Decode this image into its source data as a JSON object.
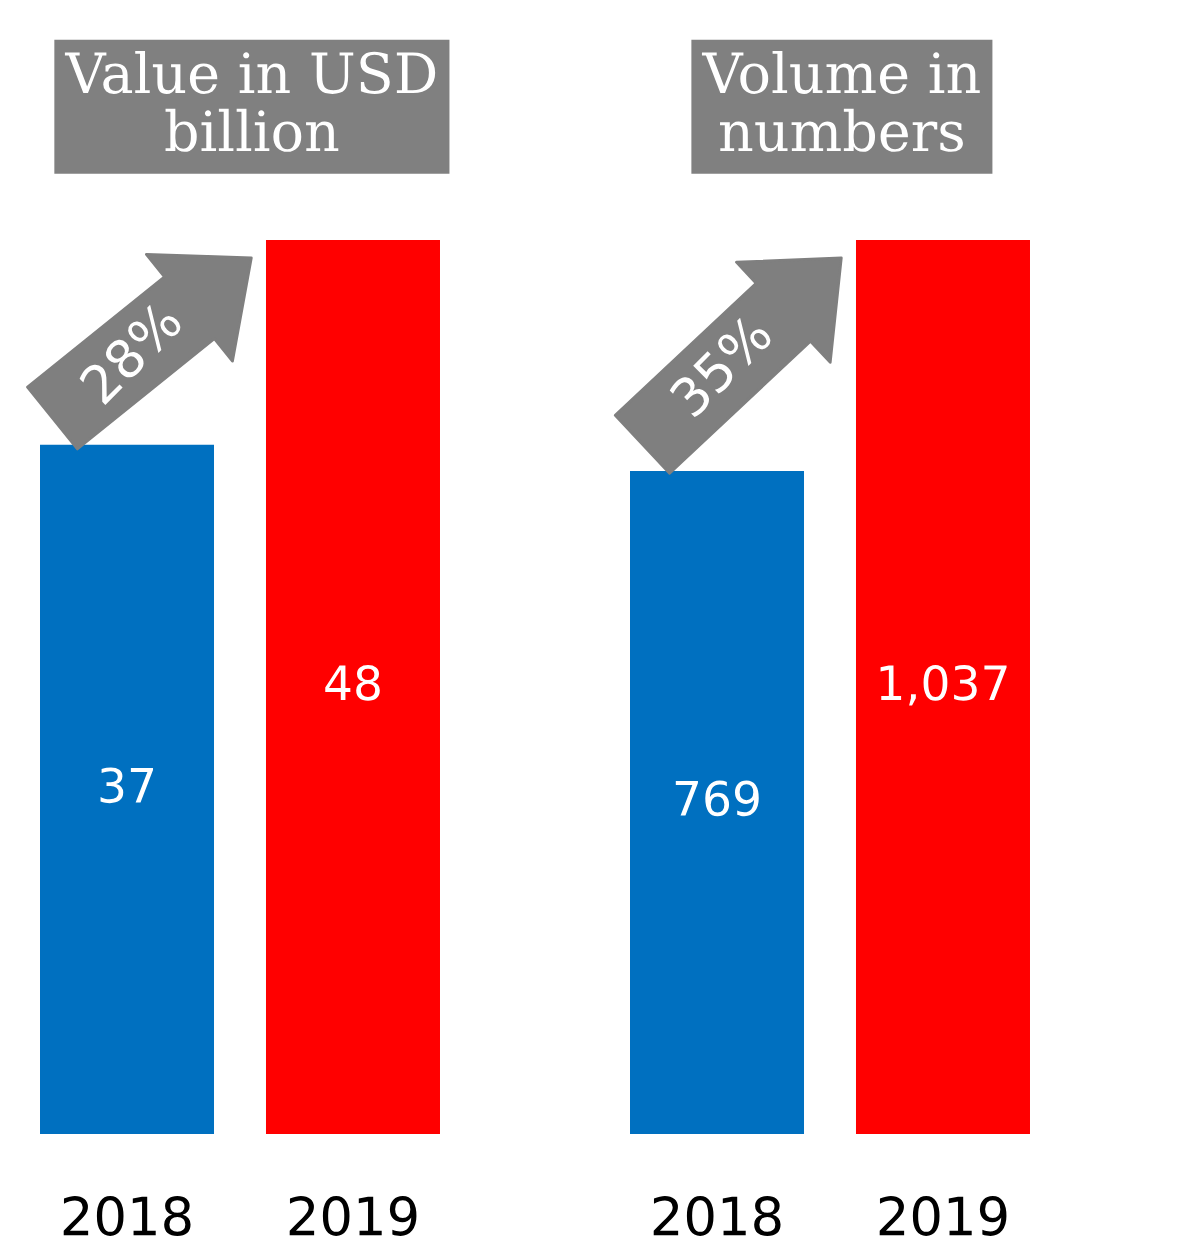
{
  "chart_data": [
    {
      "type": "bar",
      "title": "Value in USD\nbillion",
      "categories": [
        "2018",
        "2019"
      ],
      "values": [
        37,
        48
      ],
      "colors": [
        "#0070c0",
        "#ff0000"
      ],
      "value_labels": [
        "37",
        "48"
      ],
      "annotations": [
        "28%"
      ]
    },
    {
      "type": "bar",
      "title": "Volume in\nnumbers",
      "categories": [
        "2018",
        "2019"
      ],
      "values": [
        769,
        1037
      ],
      "colors": [
        "#0070c0",
        "#ff0000"
      ],
      "value_labels": [
        "769",
        "1,037"
      ],
      "annotations": [
        "35%"
      ]
    }
  ]
}
